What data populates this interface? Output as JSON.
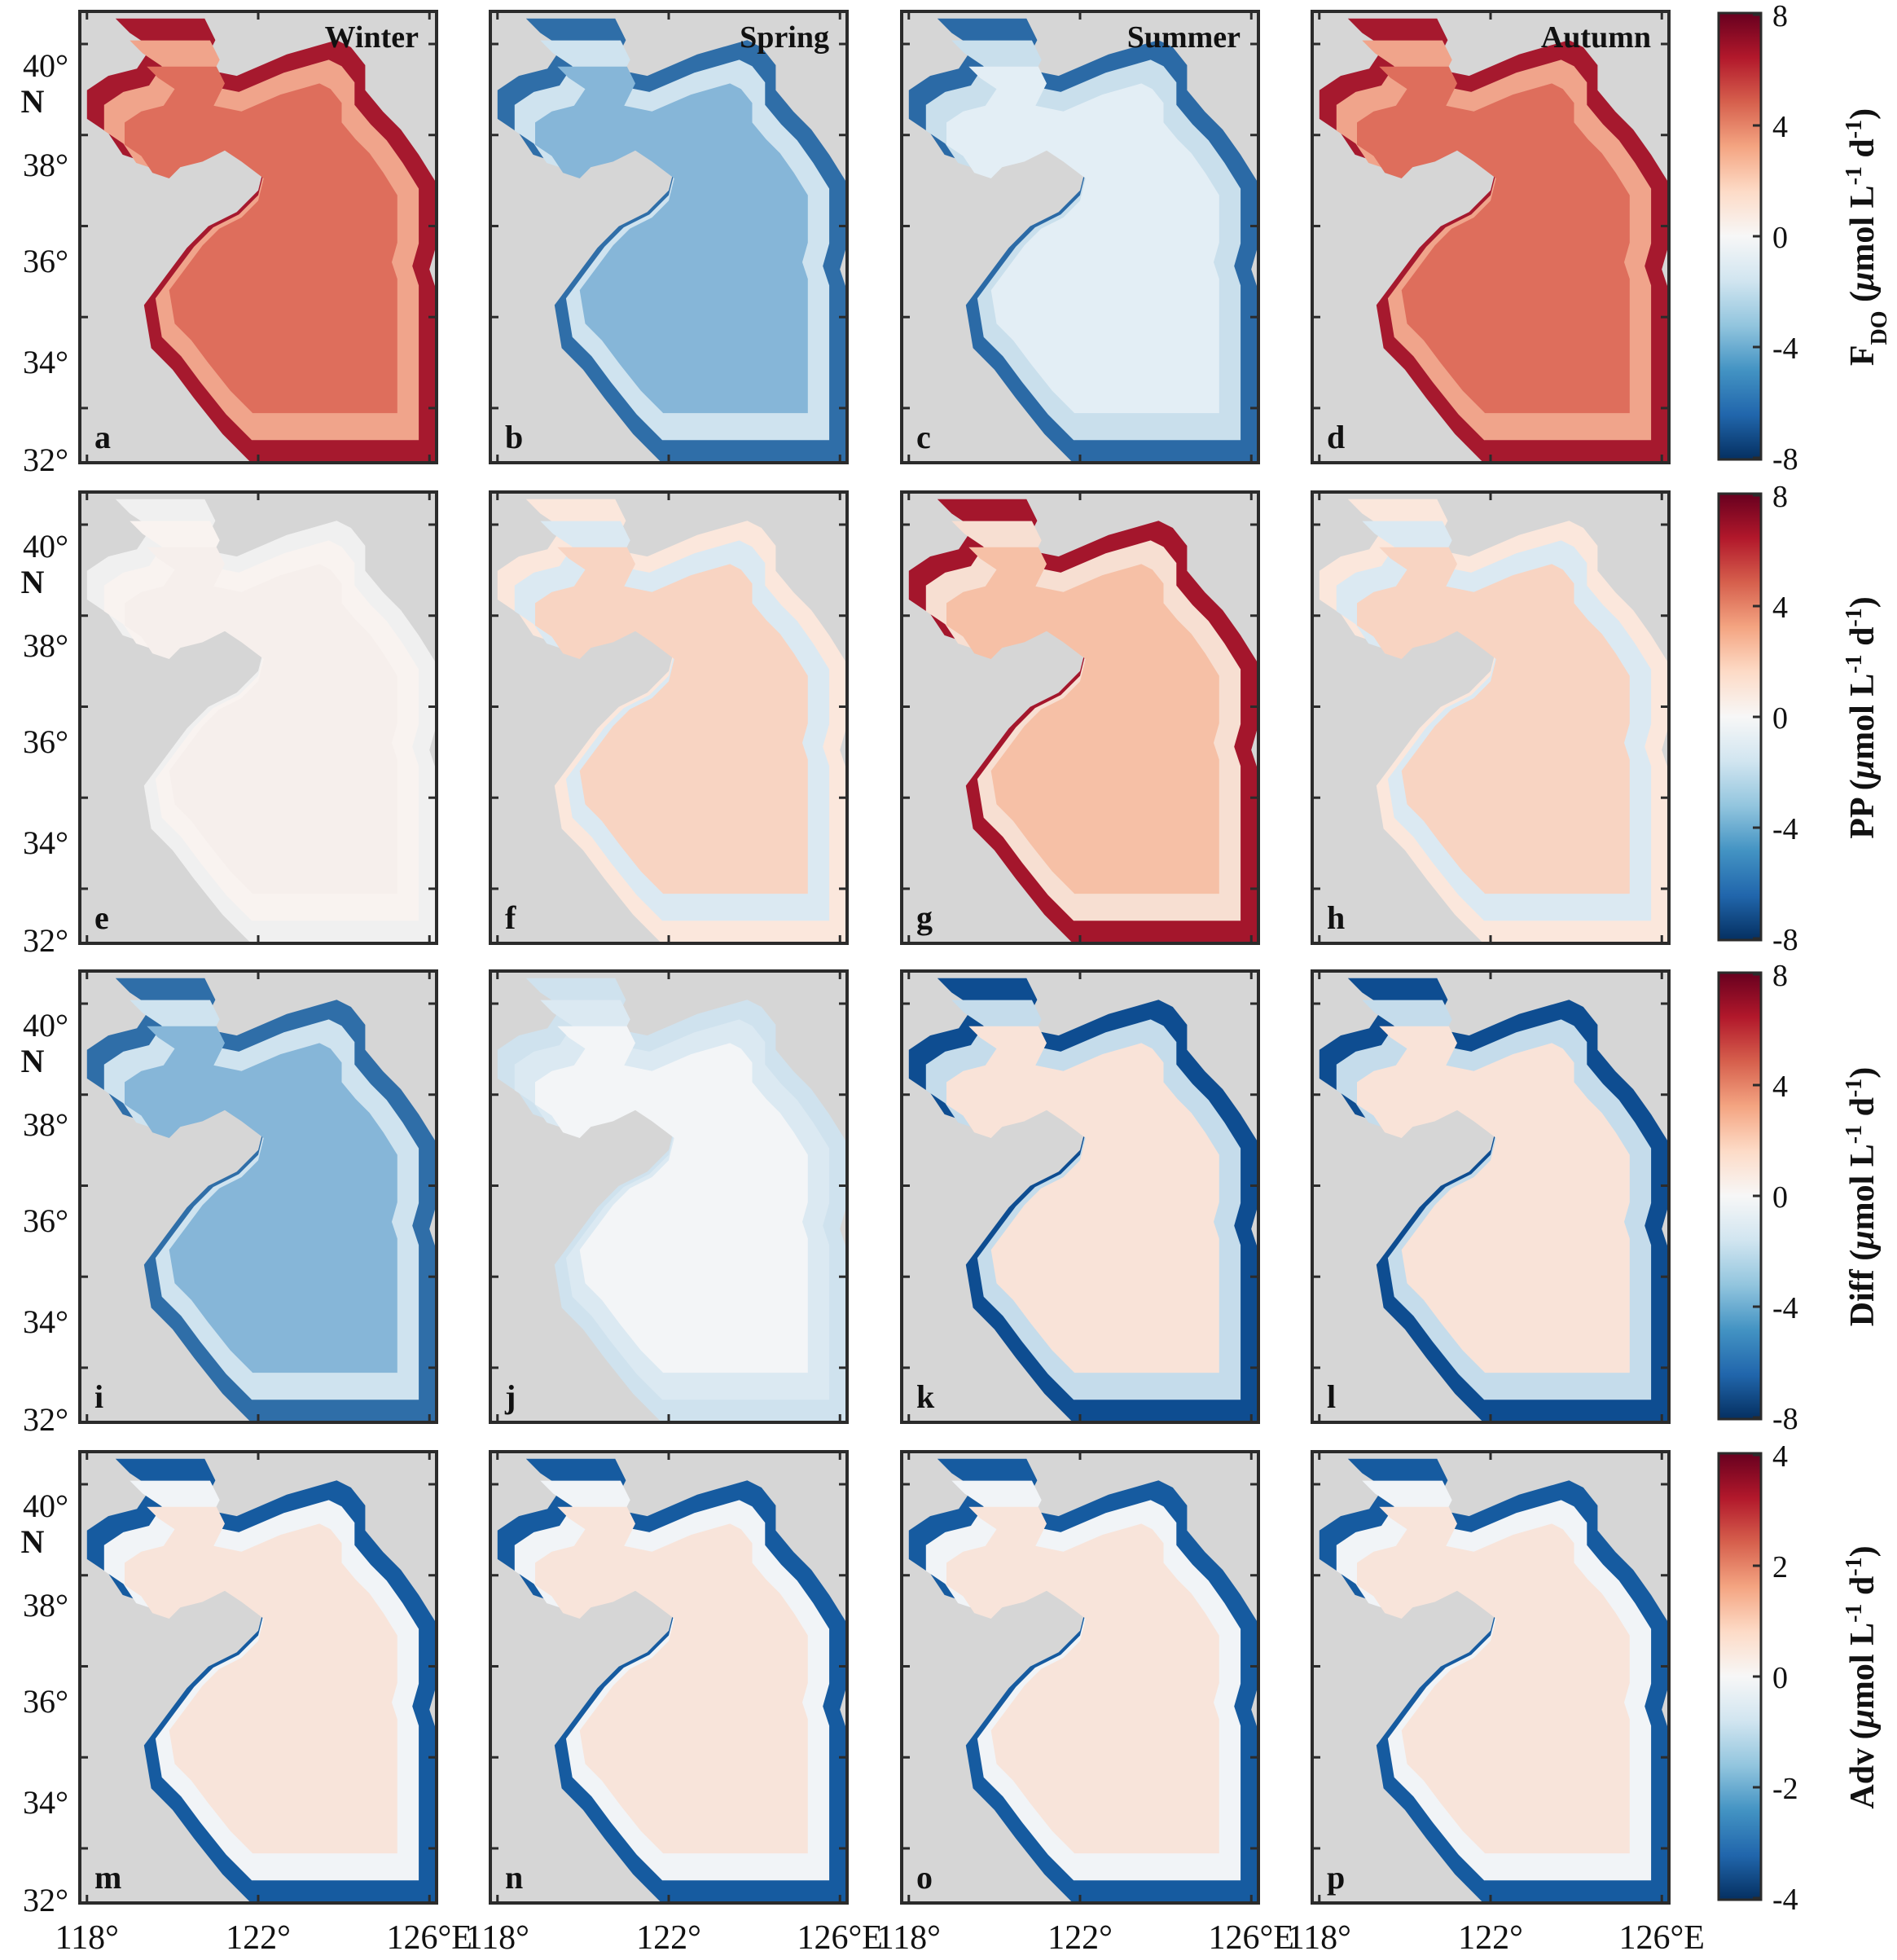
{
  "seasons": [
    "Winter",
    "Spring",
    "Summer",
    "Autumn"
  ],
  "rows": [
    {
      "ylabel": "F",
      "ylabel_sub": "DO",
      "unit_open": " (",
      "unit_mu": "μ",
      "unit_rest": "mol L",
      "unit_sup1": "-1",
      "unit_d": " d",
      "unit_sup2": "-1",
      "unit_close": ")",
      "cbar_ticks": [
        "8",
        "4",
        "0",
        "-4",
        "-8"
      ],
      "panels": [
        "a",
        "b",
        "c",
        "d"
      ],
      "scheme": [
        "r",
        "b",
        "m",
        "r"
      ]
    },
    {
      "ylabel": "PP",
      "ylabel_sub": "",
      "unit_open": " (",
      "unit_mu": "μ",
      "unit_rest": "mol L",
      "unit_sup1": "-1",
      "unit_d": " d",
      "unit_sup2": "-1",
      "unit_close": ")",
      "cbar_ticks": [
        "8",
        "4",
        "0",
        "-4",
        "-8"
      ],
      "panels": [
        "e",
        "f",
        "g",
        "h"
      ],
      "scheme": [
        "w",
        "l",
        "R",
        "l"
      ]
    },
    {
      "ylabel": "Diff",
      "ylabel_sub": "",
      "unit_open": " (",
      "unit_mu": "μ",
      "unit_rest": "mol L",
      "unit_sup1": "-1",
      "unit_d": " d",
      "unit_sup2": "-1",
      "unit_close": ")",
      "cbar_ticks": [
        "8",
        "4",
        "0",
        "-4",
        "-8"
      ],
      "panels": [
        "i",
        "j",
        "k",
        "l"
      ],
      "scheme": [
        "b",
        "p",
        "B",
        "B"
      ]
    },
    {
      "ylabel": "Adv",
      "ylabel_sub": "",
      "unit_open": " (",
      "unit_mu": "μ",
      "unit_rest": "mol L",
      "unit_sup1": "-1",
      "unit_d": " d",
      "unit_sup2": "-1",
      "unit_close": ")",
      "cbar_ticks": [
        "4",
        "2",
        "0",
        "-2",
        "-4"
      ],
      "panels": [
        "m",
        "n",
        "o",
        "p"
      ],
      "scheme": [
        "a",
        "a",
        "a",
        "a"
      ]
    }
  ],
  "lat_ticks": [
    "40°",
    "38°",
    "36°",
    "34°",
    "32°"
  ],
  "lat_unit": "N",
  "lon_ticks": [
    "118°",
    "122°",
    "126°E"
  ],
  "colors": {
    "land": "#d6d6d6",
    "frame": "#2b2b2b",
    "cbar_stops": [
      "#67001f",
      "#b2182b",
      "#d6604d",
      "#f4a582",
      "#fddbc7",
      "#f7f7f7",
      "#d1e5f0",
      "#92c5de",
      "#4393c3",
      "#2166ac",
      "#053061"
    ],
    "schemes": {
      "r": {
        "base": "#de6e5c",
        "coast": "#a6192e",
        "shelf": "#f0a48b"
      },
      "b": {
        "base": "#86b6d8",
        "coast": "#2f6ea8",
        "shelf": "#cfe3ef"
      },
      "m": {
        "base": "#e3eef5",
        "coast": "#2b6aa6",
        "shelf": "#c9dfec"
      },
      "w": {
        "base": "#f6efec",
        "coast": "#f0f0f0",
        "shelf": "#f9f3f0"
      },
      "l": {
        "base": "#f8d4c2",
        "coast": "#fbe7dc",
        "shelf": "#dbe9f2"
      },
      "R": {
        "base": "#f6c0a6",
        "coast": "#a4162c",
        "shelf": "#f7dfd2"
      },
      "p": {
        "base": "#f3f5f7",
        "coast": "#cfe2ee",
        "shelf": "#dbe9f2"
      },
      "B": {
        "base": "#f9e3d8",
        "coast": "#0e4d91",
        "shelf": "#c5dceb"
      },
      "a": {
        "base": "#f8e4da",
        "coast": "#165ba0",
        "shelf": "#f1f4f7"
      }
    }
  }
}
